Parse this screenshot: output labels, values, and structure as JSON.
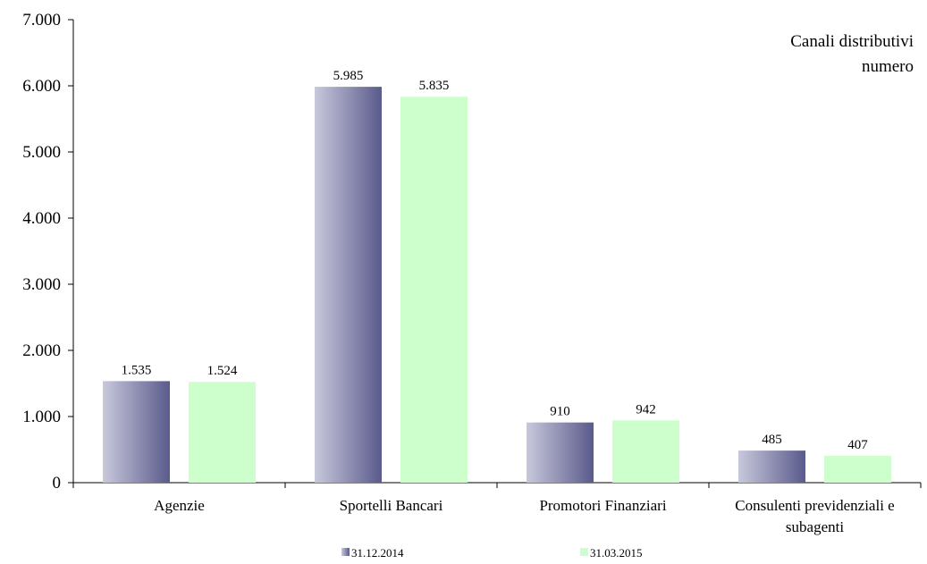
{
  "chart_data": {
    "type": "bar",
    "title_lines": [
      "Canali distributivi",
      "numero"
    ],
    "categories": [
      [
        "Agenzie"
      ],
      [
        "Sportelli Bancari"
      ],
      [
        "Promotori Finanziari"
      ],
      [
        "Consulenti previdenziali e",
        "subagenti"
      ]
    ],
    "series": [
      {
        "name": "31.12.2014",
        "values": [
          1535,
          5985,
          910,
          485
        ],
        "labels": [
          "1.535",
          "5.985",
          "910",
          "485"
        ],
        "color_light": "#c8c8dc",
        "color_dark": "#5a5a8c"
      },
      {
        "name": "31.03.2015",
        "values": [
          1524,
          5835,
          942,
          407
        ],
        "labels": [
          "1.524",
          "5.835",
          "942",
          "407"
        ],
        "color": "#ccffcc"
      }
    ],
    "ylim": [
      0,
      7000
    ],
    "yticks": [
      0,
      1000,
      2000,
      3000,
      4000,
      5000,
      6000,
      7000
    ],
    "ytick_labels": [
      "0",
      "1.000",
      "2.000",
      "3.000",
      "4.000",
      "5.000",
      "6.000",
      "7.000"
    ],
    "grid": false,
    "legend_position": "bottom"
  }
}
